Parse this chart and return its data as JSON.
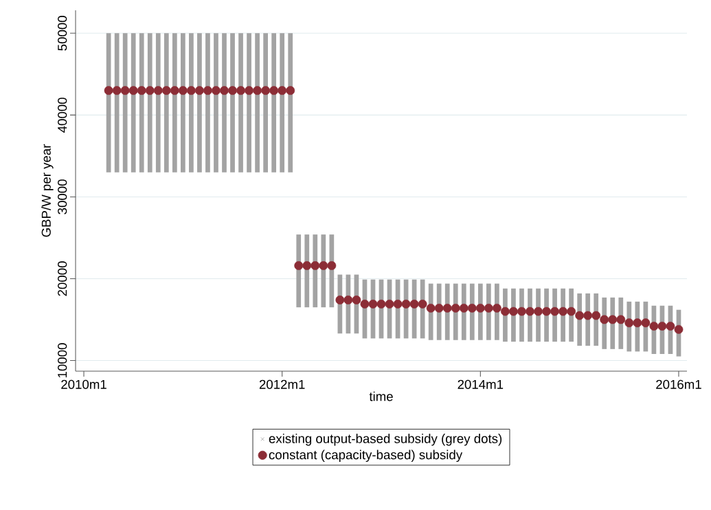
{
  "chart_data": {
    "type": "scatter",
    "xlabel": "time",
    "ylabel": "GBP/W per year",
    "x": [
      "2010-04",
      "2010-05",
      "2010-06",
      "2010-07",
      "2010-08",
      "2010-09",
      "2010-10",
      "2010-11",
      "2010-12",
      "2011-01",
      "2011-02",
      "2011-03",
      "2011-04",
      "2011-05",
      "2011-06",
      "2011-07",
      "2011-08",
      "2011-09",
      "2011-10",
      "2011-11",
      "2011-12",
      "2012-01",
      "2012-02",
      "2012-03",
      "2012-04",
      "2012-05",
      "2012-06",
      "2012-07",
      "2012-08",
      "2012-09",
      "2012-10",
      "2012-11",
      "2012-12",
      "2013-01",
      "2013-02",
      "2013-03",
      "2013-04",
      "2013-05",
      "2013-06",
      "2013-07",
      "2013-08",
      "2013-09",
      "2013-10",
      "2013-11",
      "2013-12",
      "2014-01",
      "2014-02",
      "2014-03",
      "2014-04",
      "2014-05",
      "2014-06",
      "2014-07",
      "2014-08",
      "2014-09",
      "2014-10",
      "2014-11",
      "2014-12",
      "2015-01",
      "2015-02",
      "2015-03",
      "2015-04",
      "2015-05",
      "2015-06",
      "2015-07",
      "2015-08",
      "2015-09",
      "2015-10",
      "2015-11",
      "2015-12",
      "2016-01"
    ],
    "series": [
      {
        "name": "existing output-based subsidy (grey dots)",
        "type": "bar",
        "color": "#a3a3a3",
        "marker": "cross",
        "values": [
          17000,
          17000,
          17000,
          17000,
          17000,
          17000,
          17000,
          17000,
          17000,
          17000,
          17000,
          17000,
          17000,
          17000,
          17000,
          17000,
          17000,
          17000,
          17000,
          17000,
          17000,
          17000,
          17000,
          8900,
          8900,
          8900,
          8900,
          8900,
          7200,
          7200,
          7200,
          7200,
          7200,
          7200,
          7200,
          7200,
          7200,
          7200,
          7200,
          6900,
          6900,
          6900,
          6900,
          6900,
          6900,
          6900,
          6900,
          6900,
          6500,
          6500,
          6500,
          6500,
          6500,
          6500,
          6500,
          6500,
          6500,
          6400,
          6400,
          6400,
          6300,
          6300,
          6300,
          6100,
          6100,
          6100,
          5900,
          5900,
          5900,
          5700
        ],
        "base": [
          33000,
          33000,
          33000,
          33000,
          33000,
          33000,
          33000,
          33000,
          33000,
          33000,
          33000,
          33000,
          33000,
          33000,
          33000,
          33000,
          33000,
          33000,
          33000,
          33000,
          33000,
          33000,
          33000,
          16500,
          16500,
          16500,
          16500,
          16500,
          13300,
          13300,
          13300,
          12700,
          12700,
          12700,
          12700,
          12700,
          12700,
          12700,
          12700,
          12500,
          12500,
          12500,
          12500,
          12500,
          12500,
          12500,
          12500,
          12500,
          12300,
          12300,
          12300,
          12300,
          12300,
          12300,
          12300,
          12300,
          12300,
          11800,
          11800,
          11800,
          11400,
          11400,
          11400,
          11100,
          11100,
          11100,
          10800,
          10800,
          10800,
          10500
        ]
      },
      {
        "name": "constant (capacity-based) subsidy",
        "color": "#8c2d36",
        "marker": "circle",
        "values": [
          43000,
          43000,
          43000,
          43000,
          43000,
          43000,
          43000,
          43000,
          43000,
          43000,
          43000,
          43000,
          43000,
          43000,
          43000,
          43000,
          43000,
          43000,
          43000,
          43000,
          43000,
          43000,
          43000,
          21600,
          21600,
          21600,
          21600,
          21600,
          17400,
          17400,
          17400,
          16900,
          16900,
          16900,
          16900,
          16900,
          16900,
          16900,
          16900,
          16400,
          16400,
          16400,
          16400,
          16400,
          16400,
          16400,
          16400,
          16400,
          16000,
          16000,
          16000,
          16000,
          16000,
          16000,
          16000,
          16000,
          16000,
          15500,
          15500,
          15500,
          15000,
          15000,
          15000,
          14600,
          14600,
          14600,
          14200,
          14200,
          14200,
          13800
        ]
      }
    ],
    "xlim": [
      "2009-12",
      "2016-02"
    ],
    "xticks": [
      {
        "value": "2010-01",
        "label": "2010m1"
      },
      {
        "value": "2012-01",
        "label": "2012m1"
      },
      {
        "value": "2014-01",
        "label": "2014m1"
      },
      {
        "value": "2016-01",
        "label": "2016m1"
      }
    ],
    "ylim": [
      8700,
      52800
    ],
    "yticks": [
      10000,
      20000,
      30000,
      40000,
      50000
    ],
    "grid": "y",
    "legend": "bottom"
  }
}
